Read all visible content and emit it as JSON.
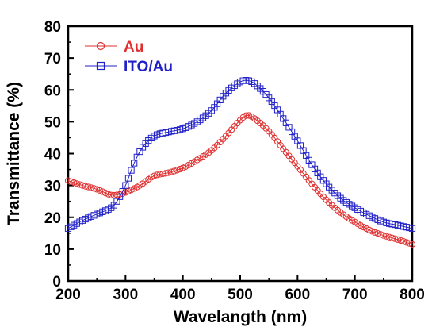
{
  "chart_data": {
    "type": "line",
    "title": "",
    "xlabel": "Wavelangth (nm)",
    "ylabel": "Transmittance (%)",
    "xlim": [
      200,
      800
    ],
    "ylim": [
      0,
      80
    ],
    "xticks": [
      200,
      300,
      400,
      500,
      600,
      700,
      800
    ],
    "yticks": [
      0,
      10,
      20,
      30,
      40,
      50,
      60,
      70,
      80
    ],
    "grid": false,
    "legend_position": "top-left",
    "series": [
      {
        "name": "Au",
        "color": "#e03030",
        "marker": "circle",
        "x": [
          200,
          225,
          250,
          275,
          290,
          300,
          325,
          350,
          375,
          400,
          425,
          450,
          475,
          500,
          512,
          525,
          550,
          575,
          600,
          625,
          650,
          675,
          700,
          725,
          750,
          775,
          800
        ],
        "y": [
          31.5,
          30.0,
          28.8,
          27.0,
          27.2,
          27.8,
          30.0,
          33.0,
          34.0,
          35.5,
          38.0,
          41.0,
          45.5,
          50.5,
          52.0,
          51.0,
          47.0,
          41.5,
          36.0,
          30.5,
          25.5,
          21.5,
          18.5,
          16.0,
          14.3,
          13.0,
          11.5
        ]
      },
      {
        "name": "ITO/Au",
        "color": "#2020c8",
        "marker": "square",
        "x": [
          200,
          225,
          250,
          275,
          285,
          300,
          315,
          330,
          350,
          375,
          400,
          425,
          450,
          475,
          500,
          512,
          525,
          550,
          575,
          600,
          625,
          650,
          675,
          700,
          725,
          750,
          775,
          800
        ],
        "y": [
          16.5,
          19.0,
          21.0,
          23.0,
          25.0,
          30.0,
          37.0,
          42.0,
          45.5,
          46.8,
          47.8,
          50.0,
          53.5,
          59.0,
          62.5,
          63.0,
          62.0,
          57.5,
          51.0,
          44.0,
          36.5,
          30.5,
          26.0,
          23.0,
          20.5,
          18.5,
          17.5,
          16.5
        ]
      }
    ]
  }
}
